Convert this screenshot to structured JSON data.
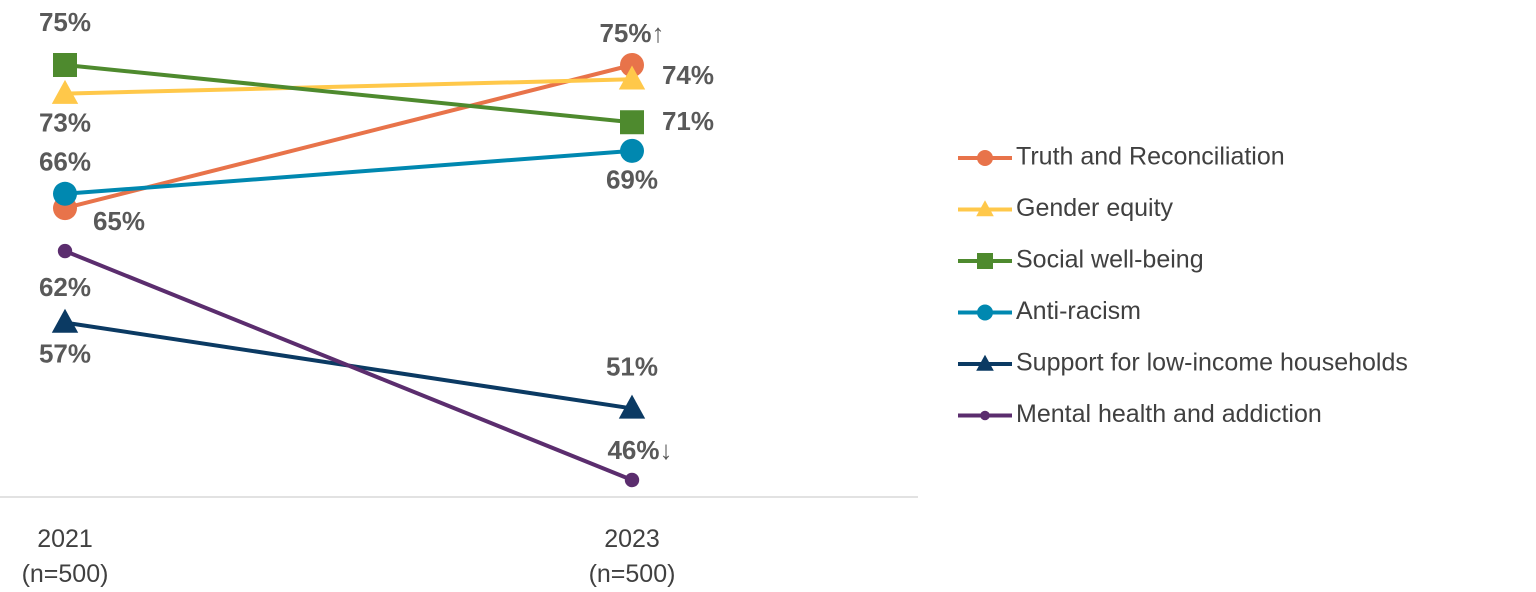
{
  "chart_data": {
    "type": "line",
    "categories": [
      "2021\n(n=500)",
      "2023\n(n=500)"
    ],
    "legend": "right",
    "series": [
      {
        "name": "Truth and Reconciliation",
        "color": "#e8734a",
        "marker": "circle",
        "values": [
          65,
          75
        ],
        "value_labels": [
          "65%",
          "75%↑"
        ]
      },
      {
        "name": "Gender equity",
        "color": "#ffc84a",
        "marker": "triangle",
        "values": [
          73,
          74
        ],
        "value_labels": [
          "73%",
          "74%"
        ]
      },
      {
        "name": "Social well-being",
        "color": "#4e8a2e",
        "marker": "square",
        "values": [
          75,
          71
        ],
        "value_labels": [
          "75%",
          "71%"
        ]
      },
      {
        "name": "Anti-racism",
        "color": "#0088b0",
        "marker": "circle",
        "values": [
          66,
          69
        ],
        "value_labels": [
          "66%",
          "69%"
        ]
      },
      {
        "name": "Support for low-income households",
        "color": "#0b3a63",
        "marker": "triangle",
        "values": [
          57,
          51
        ],
        "value_labels": [
          "57%",
          "51%"
        ]
      },
      {
        "name": "Mental health and addiction",
        "color": "#5b2d6e",
        "marker": "dot",
        "values": [
          62,
          46
        ],
        "value_labels": [
          "62%",
          "46%↓"
        ]
      }
    ]
  }
}
